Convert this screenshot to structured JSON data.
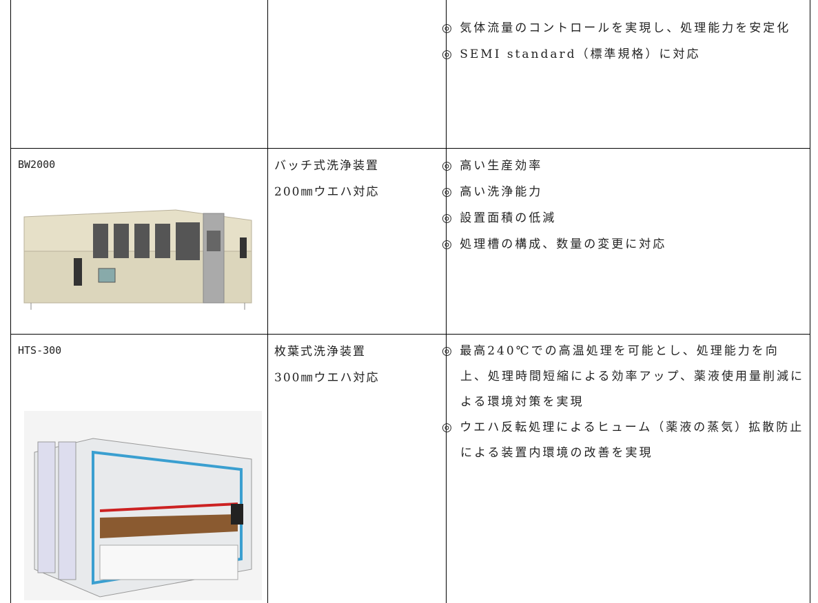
{
  "table": {
    "rows": [
      {
        "features": [
          "◎ 気体流量のコントロールを実現し、処理能力を安定化",
          "◎ SEMI standard（標準規格）に対応"
        ]
      },
      {
        "model": "BW2000",
        "type": "バッチ式洗浄装置",
        "wafer": "200㎜ウエハ対応",
        "features": [
          "◎ 高い生産効率",
          "◎ 高い洗浄能力",
          "◎ 設置面積の低減",
          "◎ 処理槽の構成、数量の変更に対応"
        ]
      },
      {
        "model": "HTS-300",
        "type": "枚葉式洗浄装置",
        "wafer": "300㎜ウエハ対応",
        "features": [
          "◎ 最高240℃での高温処理を可能とし、処理能力を向上、処理時間短縮による効率アップ、薬液使用量削減による環境対策を実現",
          "◎ ウエハ反転処理によるヒューム（薬液の蒸気）拡散防止による装置内環境の改善を実現"
        ]
      }
    ]
  }
}
